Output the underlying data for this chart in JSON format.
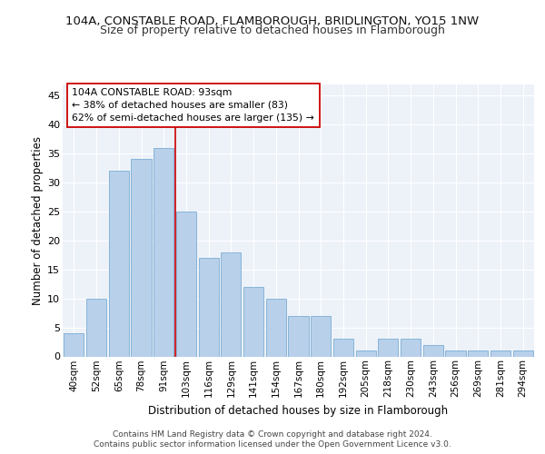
{
  "title1": "104A, CONSTABLE ROAD, FLAMBOROUGH, BRIDLINGTON, YO15 1NW",
  "title2": "Size of property relative to detached houses in Flamborough",
  "xlabel": "Distribution of detached houses by size in Flamborough",
  "ylabel": "Number of detached properties",
  "categories": [
    "40sqm",
    "52sqm",
    "65sqm",
    "78sqm",
    "91sqm",
    "103sqm",
    "116sqm",
    "129sqm",
    "141sqm",
    "154sqm",
    "167sqm",
    "180sqm",
    "192sqm",
    "205sqm",
    "218sqm",
    "230sqm",
    "243sqm",
    "256sqm",
    "269sqm",
    "281sqm",
    "294sqm"
  ],
  "values": [
    4,
    10,
    32,
    34,
    36,
    25,
    17,
    18,
    12,
    10,
    7,
    7,
    3,
    1,
    3,
    3,
    2,
    1,
    1,
    1,
    1
  ],
  "bar_color": "#b8d0ea",
  "bar_edge_color": "#7aadd4",
  "annotation_line1": "104A CONSTABLE ROAD: 93sqm",
  "annotation_line2": "← 38% of detached houses are smaller (83)",
  "annotation_line3": "62% of semi-detached houses are larger (135) →",
  "annotation_box_color": "#ffffff",
  "annotation_border_color": "#cc0000",
  "vline_color": "#cc0000",
  "ylim": [
    0,
    47
  ],
  "yticks": [
    0,
    5,
    10,
    15,
    20,
    25,
    30,
    35,
    40,
    45
  ],
  "footer1": "Contains HM Land Registry data © Crown copyright and database right 2024.",
  "footer2": "Contains public sector information licensed under the Open Government Licence v3.0.",
  "background_color": "#edf2f9",
  "grid_color": "#ffffff",
  "title1_fontsize": 9.5,
  "title2_fontsize": 9.0,
  "axis_label_fontsize": 8.5,
  "tick_fontsize": 7.5,
  "annotation_fontsize": 7.8,
  "footer_fontsize": 6.5,
  "vline_x_index": 4.5
}
